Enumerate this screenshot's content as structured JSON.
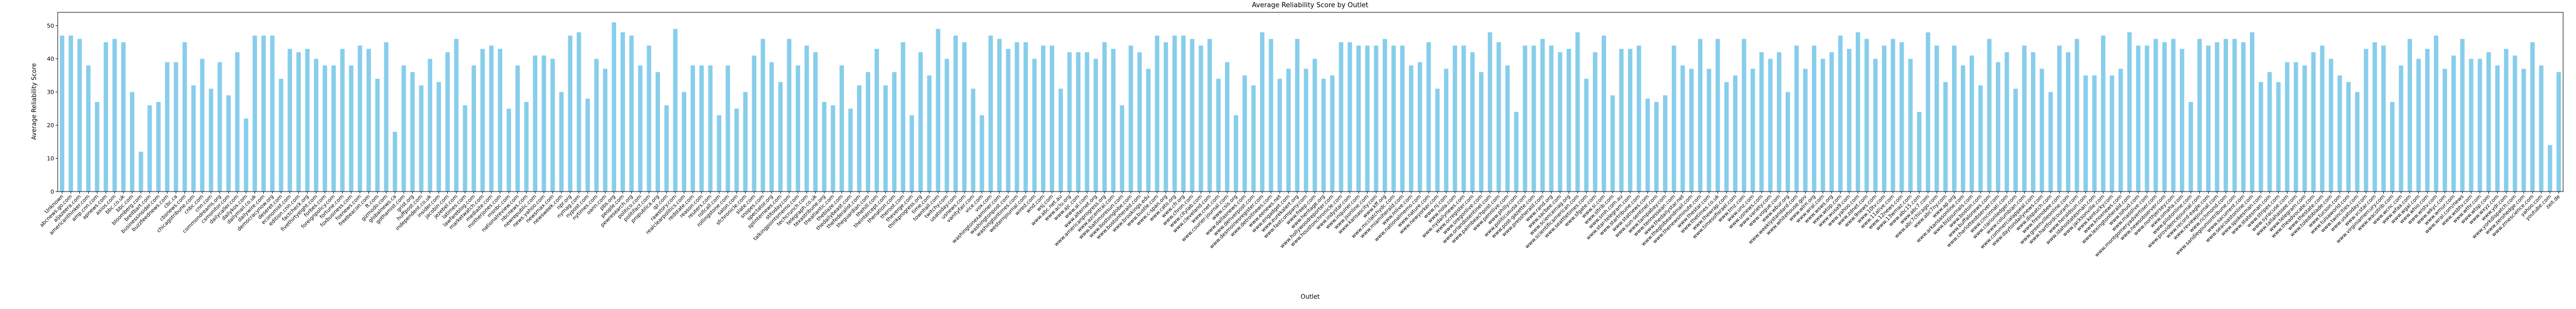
{
  "chart_data": {
    "type": "bar",
    "title": "Average Reliability Score by Outlet",
    "xlabel": "Outlet",
    "ylabel": "Average Reliability Score",
    "color": "#87ceeb",
    "ylim": [
      0,
      54
    ],
    "yticks": [
      0,
      10,
      20,
      30,
      40,
      50
    ],
    "grid": false,
    "categories": [
      "Unknown",
      "abcnews.go.com",
      "aljazeera.com",
      "americanthinker.com",
      "amp.cnn.com",
      "apnews.com",
      "axios.com",
      "bbc.co.uk",
      "bbc.com",
      "bloomberg.com",
      "breitbart.com",
      "businessinsider.com",
      "buzzfeednews.com",
      "cbc.ca",
      "cbsnews.com",
      "chicagotribune.com",
      "cnbc.com",
      "cnn.com",
      "commondreams.org",
      "csmonitor.com",
      "dailycaller.com",
      "dailykos.com",
      "dailymail.co.uk",
      "dailywire.com",
      "democracynow.org",
      "deseret.com",
      "economist.com",
      "edition.cnn.com",
      "factcheck.org",
      "fivethirtyeight.com",
      "forbes.com",
      "foreignpolicy.com",
      "fortune.com",
      "foxbusiness.com",
      "foxnews.com",
      "freebeacon.com",
      "ft.com",
      "gizmodo.com",
      "globalnews.ca",
      "gothamist.com",
      "grist.org",
      "huffpost.com",
      "independent.co.uk",
      "insider.com",
      "jacobin.com",
      "jezebel.com",
      "latimes.com",
      "lawfareblog.com",
      "marketwatch.com",
      "mediaite.com",
      "motherjones.com",
      "msnbc.com",
      "nationalreview.com",
      "nbcnews.com",
      "newrepublic.com",
      "news.yahoo.com",
      "newsmax.com",
      "newsweek.com",
      "npr.org",
      "nymag.com",
      "nypost.com",
      "nytimes.com",
      "oann.com",
      "pbs.org",
      "people.com",
      "pewresearch.org",
      "politico.com",
      "politifact.com",
      "propublica.org",
      "qz.com",
      "rawstory.com",
      "realclearpolitics.com",
      "redstate.com",
      "reason.com",
      "reuters.com",
      "rollcall.com",
      "rollingstone.com",
      "salon.com",
      "sfchronicle.com",
      "slate.com",
      "snopes.com",
      "spectator.org",
      "splinternews.com",
      "stltoday.com",
      "talkingpointsmemo.com",
      "techcrunch.com",
      "telegraph.co.uk",
      "texastribune.org",
      "theatlantic.com",
      "theblaze.com",
      "thedailybeast.com",
      "thefederalist.com",
      "theguardian.com",
      "thehill.com",
      "theintercept.com",
      "thenation.com",
      "theroot.com",
      "theverge.com",
      "thinkprogress.org",
      "time.com",
      "townhall.com",
      "twitchy.com",
      "usatoday.com",
      "usnews.com",
      "vanityfair.com",
      "vice.com",
      "vox.com",
      "washingtonexaminer.com",
      "washingtonpost.com",
      "washingtontimes.com",
      "westernjournal.com",
      "wired.com",
      "wnd.com",
      "wsj.com",
      "www.abc.net.au",
      "www.aclu.org",
      "www.ajc.com",
      "www.al.com",
      "www.alternet.org",
      "www.americanprogress.org",
      "www.azcentral.com",
      "www.baltimoresun.com",
      "www.bostonglobe.com",
      "www.bostonherald.com",
      "www.brookings.edu",
      "www.bustle.com",
      "www.c-span.org",
      "www.cato.org",
      "www.cfr.org",
      "www.chron.com",
      "www.citylab.com",
      "www.cleveland.com",
      "www.cnet.com",
      "www.courier-journal.com",
      "www.csis.org",
      "www.dallasnews.com",
      "www.denverpost.com",
      "www.desmoinesregister.com",
      "www.detroitnews.com",
      "www.eenews.net",
      "www.engadget.com",
      "www.eurekalert.org",
      "www.fastcompany.com",
      "www.freep.com",
      "www.heritage.org",
      "www.hollywoodreporter.com",
      "www.houstonchronicle.com",
      "www.indystar.com",
      "www.inquirer.com",
      "www.jsonline.com",
      "www.kansascity.com",
      "www.kff.org",
      "www.mcclatchydc.com",
      "www.miamiherald.com",
      "www.mlive.com",
      "www.nationalmemo.com",
      "www.nature.com",
      "www.newyorker.com",
      "www.nj.com",
      "www.nola.com",
      "www.nydailynews.com",
      "www.ocregister.com",
      "www.oregonlive.com",
      "www.orlandosentinel.com",
      "www.palmbeachpost.com",
      "www.pennlive.com",
      "www.philly.com",
      "www.politicususa.com",
      "www.post-gazette.com",
      "www.pressherald.com",
      "www.rand.org",
      "www.sacbee.com",
      "www.sciencemag.org",
      "www.scientificamerican.com",
      "www.seattletimes.com",
      "www.sfgate.com",
      "www.si.com",
      "www.sltrib.com",
      "www.smh.com.au",
      "www.star-telegram.com",
      "www.startribune.com",
      "www.statnews.com",
      "www.sun-sentinel.com",
      "www.tampabay.com",
      "www.tennessean.com",
      "www.thedailystar.net",
      "www.theglobeandmail.com",
      "www.thenewsminute.com",
      "www.thestar.com",
      "www.thetimes.co.uk",
      "www.thewrap.com",
      "www.timesofisrael.com",
      "www.tmz.com",
      "www.unz.com",
      "www.usnews.com",
      "www.variety.com",
      "www.vogue.com",
      "www.wbur.org",
      "www.weeklystandard.com",
      "www.whitehouse.gov",
      "www.wlrn.org",
      "www.wral.com",
      "www.wsws.org",
      "www.wtop.com",
      "www.wusa9.com",
      "www.yahoo.com",
      "www.zdnet.com",
      "www.9news.com",
      "www.10tv.com",
      "www.11alive.com",
      "www.12news.com",
      "www.13wmaz.com",
      "www.abc15.com",
      "www.abc7.com",
      "www.abc7chicago.com",
      "www.abc7ny.com",
      "www.ap.org",
      "www.arkansasonline.com",
      "www.bizjournals.com",
      "www.boston.com",
      "www.buffalonews.com",
      "www.charlotteobserver.com",
      "www.cincinnati.com",
      "www.clarionledger.com",
      "www.columbian.com",
      "www.commercialappeal.com",
      "www.daytondailynews.com",
      "www.dispatch.com",
      "www.fresnobee.com",
      "www.greenvilleonline.com",
      "www.hartfordcourant.com",
      "www.heraldsun.com",
      "www.idahostatesman.com",
      "www.jacksonville.com",
      "www.kentucky.com",
      "www.knoxnews.com",
      "www.lexingtonherald.com",
      "www.lohud.com",
      "www.masslive.com",
      "www.montgomeryadvertiser.com",
      "www.newsobserver.com",
      "www.northjersey.com",
      "www.omaha.com",
      "www.pilotonline.com",
      "www.providencejournal.com",
      "www.record-eagle.com",
      "www.reviewjournal.com",
      "www.richmond.com",
      "www.sandiegouniontribune.com",
      "www.sacurrent.com",
      "www.seacoastonline.com",
      "www.spokesman.com",
      "www.statesman.com",
      "www.stripes.com",
      "www.syracuse.com",
      "www.tallahassee.com",
      "www.telegram.com",
      "www.theadvocate.com",
      "www.thestate.com",
      "www.toledoblade.com",
      "www.tucson.com",
      "www.tulsaworld.com",
      "www.twincities.com",
      "www.usatoday.com",
      "www.vcstar.com",
      "www.virginiamercury.com",
      "www.wacotrib.com",
      "www.wcnc.com",
      "www.wfaa.com",
      "www.wgal.com",
      "www.whio.com",
      "www.wistv.com",
      "www.wkyc.com",
      "www.wmur.com",
      "www.wral.com/news",
      "www.wsbtv.com",
      "www.wthr.com",
      "www.wtsp.com",
      "www.wxyz.com",
      "www.ydr.com",
      "www.yorkdispatch.com",
      "www.zerohedge.com",
      "www.zmescience.com",
      "yahoo.com",
      "youtube.com",
      "zeit.de"
    ],
    "values": [
      47,
      47,
      46,
      38,
      27,
      45,
      46,
      45,
      30,
      12,
      26,
      27,
      39,
      39,
      45,
      32,
      40,
      31,
      39,
      29,
      42,
      22,
      47,
      47,
      47,
      34,
      43,
      42,
      43,
      40,
      38,
      38,
      43,
      38,
      44,
      43,
      34,
      45,
      18,
      38,
      36,
      32,
      40,
      33,
      42,
      46,
      26,
      38,
      43,
      44,
      43,
      25,
      38,
      27,
      41,
      41,
      40,
      30,
      47,
      48,
      28,
      40,
      37,
      51,
      48,
      47,
      38,
      44,
      36,
      26,
      49,
      30,
      38,
      38,
      38,
      23,
      38,
      25,
      30,
      41,
      46,
      39,
      33,
      46,
      38,
      44,
      42,
      27,
      26,
      38,
      25,
      32,
      36,
      43,
      32,
      36,
      45,
      23,
      42,
      35,
      49,
      40,
      47,
      45,
      31,
      23,
      47,
      46,
      43,
      45,
      45,
      40,
      44,
      44,
      31,
      42,
      42,
      42,
      40,
      45,
      43,
      26,
      44,
      42,
      37,
      47,
      45,
      47,
      47,
      46,
      44,
      46,
      34,
      39,
      23,
      35,
      32,
      48,
      46,
      34,
      37,
      46,
      37,
      40,
      34,
      35,
      45,
      45,
      44,
      44,
      44,
      46,
      44,
      44,
      38,
      39,
      45,
      31,
      37,
      44,
      44,
      42,
      36,
      48,
      45,
      38,
      24,
      44,
      44,
      46,
      44,
      42,
      43,
      48,
      34,
      42,
      47,
      29,
      43,
      43,
      44,
      28,
      27,
      29,
      44,
      38,
      37,
      46,
      37,
      46,
      33,
      35,
      46,
      37,
      42,
      40,
      42,
      30,
      44,
      37,
      44,
      40,
      42,
      47,
      43,
      48,
      46,
      40,
      44,
      46,
      45,
      40,
      24,
      48,
      44,
      33,
      44,
      38,
      41,
      32,
      46,
      39,
      42,
      31,
      44,
      42,
      37,
      30,
      44,
      42,
      46,
      35,
      35,
      47,
      35,
      37,
      48,
      44,
      44,
      46,
      45,
      46,
      43,
      27,
      46,
      44,
      45,
      46,
      46,
      45,
      48,
      33,
      36,
      33,
      39,
      39,
      38,
      42,
      44,
      40,
      35,
      33,
      30,
      43,
      45,
      44,
      27,
      38,
      46,
      40,
      43,
      47,
      37,
      41,
      46,
      40,
      40,
      42,
      38,
      43,
      41,
      37,
      45,
      38,
      14,
      36
    ]
  }
}
